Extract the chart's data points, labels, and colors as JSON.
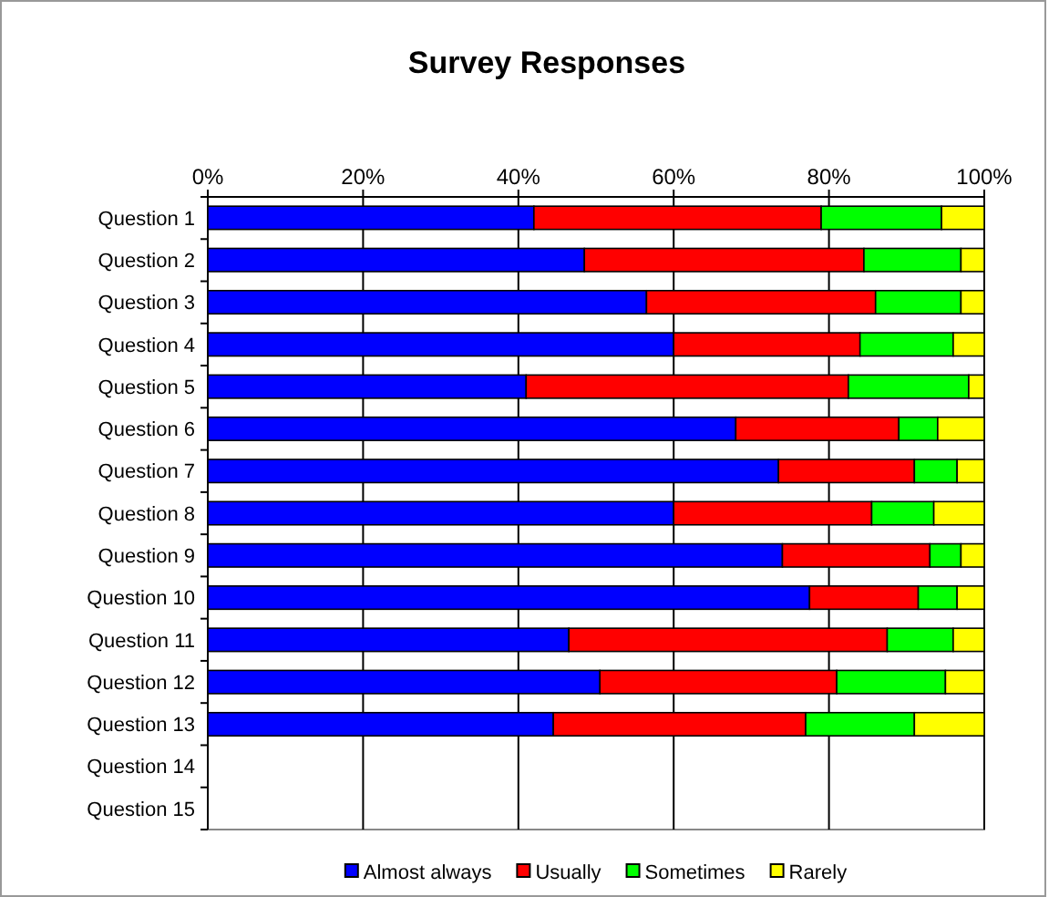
{
  "chart_data": {
    "type": "bar",
    "title": "Survey Responses",
    "orientation": "horizontal",
    "stacked": true,
    "categories": [
      "Question 1",
      "Question 2",
      "Question 3",
      "Question 4",
      "Question 5",
      "Question 6",
      "Question 7",
      "Question 8",
      "Question 9",
      "Question 10",
      "Question 11",
      "Question 12",
      "Question 13",
      "Question 14",
      "Question 15"
    ],
    "series": [
      {
        "name": "Almost always",
        "color": "#0000ff",
        "values": [
          42,
          48.5,
          56.5,
          60,
          41,
          68,
          73.5,
          60,
          74,
          77.5,
          46.5,
          50.5,
          44.5,
          null,
          null
        ]
      },
      {
        "name": "Usually",
        "color": "#ff0000",
        "values": [
          37,
          36,
          29.5,
          24,
          41.5,
          21,
          17.5,
          25.5,
          19,
          14,
          41,
          30.5,
          32.5,
          null,
          null
        ]
      },
      {
        "name": "Sometimes",
        "color": "#00ff00",
        "values": [
          15.5,
          12.5,
          11,
          12,
          15.5,
          5,
          5.5,
          8,
          4,
          5,
          8.5,
          14,
          14,
          null,
          null
        ]
      },
      {
        "name": "Rarely",
        "color": "#ffff00",
        "values": [
          5.5,
          3,
          3,
          4,
          2,
          6,
          3.5,
          6.5,
          3,
          3.5,
          4,
          5,
          9,
          null,
          null
        ]
      }
    ],
    "xlim": [
      0,
      100
    ],
    "xticks": [
      {
        "value": 0,
        "label": "0%"
      },
      {
        "value": 20,
        "label": "20%"
      },
      {
        "value": 40,
        "label": "40%"
      },
      {
        "value": 60,
        "label": "60%"
      },
      {
        "value": 80,
        "label": "80%"
      },
      {
        "value": 100,
        "label": "100%"
      }
    ],
    "grid": "x",
    "legend": "bottom"
  }
}
